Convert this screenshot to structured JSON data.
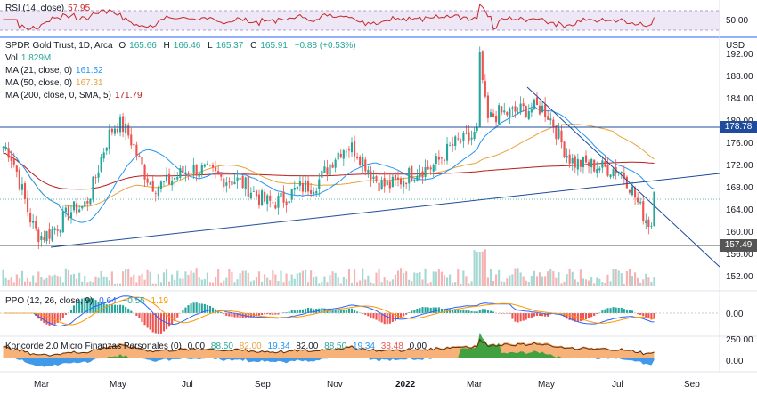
{
  "rsi": {
    "title": "RSI (14, close)",
    "value": "57.95",
    "ticks": [
      "50.00"
    ]
  },
  "main": {
    "title": "SPDR Gold Trust, 1D, Arca",
    "o_label": "O",
    "o": "165.66",
    "h_label": "H",
    "h": "166.46",
    "l_label": "L",
    "l": "165.37",
    "c_label": "C",
    "c": "165.91",
    "change": "+0.88 (+0.53%)",
    "vol_label": "Vol",
    "vol": "1.829M",
    "ma21_label": "MA (21, close, 0)",
    "ma21": "161.52",
    "ma50_label": "MA (50, close, 0)",
    "ma50": "167.31",
    "ma200_label": "MA (200, close, 0, SMA, 5)",
    "ma200": "171.79",
    "currency": "USD",
    "price_ticks": [
      "192.00",
      "188.00",
      "184.00",
      "180.00",
      "176.00",
      "172.00",
      "168.00",
      "164.00",
      "160.00",
      "156.00",
      "152.00"
    ],
    "tag_upper": "178.78",
    "tag_lower": "157.49"
  },
  "ppo": {
    "title": "PPO (12, 26, close, 9)",
    "v1": "0.64",
    "v2": "−0.55",
    "v3": "1.19",
    "ticks": [
      "0.00"
    ]
  },
  "koncorde": {
    "title": "Koncorde 2.0 Micro Finanzas Personales (0)",
    "values": [
      "0.00",
      "88.50",
      "82.00",
      "19.34",
      "82.00",
      "88.50",
      "19.34",
      "38.48",
      "0.00"
    ],
    "ticks": [
      "250.00",
      "0.00"
    ]
  },
  "time_axis": [
    "Mar",
    "May",
    "Jul",
    "Sep",
    "Nov",
    "2022",
    "Mar",
    "May",
    "Jul",
    "Sep"
  ],
  "colors": {
    "up": "#26a69a",
    "down": "#ef5350",
    "ma21": "#2196f3",
    "ma50": "#e8a33d",
    "ma200": "#b71c1c",
    "rsi": "#c62828",
    "trend": "#1e4b9c",
    "level": "#1e4b9c",
    "grid": "#f0f3fa"
  },
  "chart_data": {
    "type": "candlestick",
    "symbol": "SPDR Gold Trust",
    "interval": "1D",
    "ylim": [
      150,
      194
    ],
    "x": [
      "2021-02",
      "2021-03",
      "2021-04",
      "2021-05",
      "2021-06",
      "2021-07",
      "2021-08",
      "2021-09",
      "2021-10",
      "2021-11",
      "2021-12",
      "2022-01",
      "2022-02",
      "2022-03",
      "2022-04",
      "2022-05",
      "2022-06",
      "2022-07"
    ],
    "close_approx": [
      174,
      158,
      163,
      178,
      167,
      170,
      168,
      164,
      167,
      174,
      167,
      170,
      175,
      180,
      181,
      171,
      170,
      160
    ],
    "levels": [
      178.78,
      157.49
    ],
    "last": {
      "open": 165.66,
      "high": 166.46,
      "low": 165.37,
      "close": 165.91,
      "volume": "1.829M"
    },
    "ma": {
      "ma21": 161.52,
      "ma50": 167.31,
      "ma200": 171.79
    },
    "rsi_last": 57.95,
    "ppo_last": [
      0.64,
      -0.55,
      1.19
    ]
  }
}
